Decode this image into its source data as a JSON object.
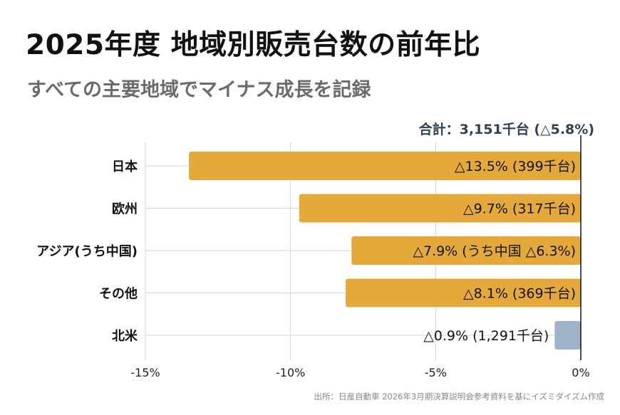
{
  "title": "2025年度 地域別販売台数の前年比",
  "subtitle": "すべての主要地域でマイナス成長を記録",
  "total_label": "合計：3,151千台 (△5.8%)",
  "source": "出所：日産自動車 2026年3月期決算説明会参考資料を基にイズミダイズム作成",
  "colors": {
    "bar": "#e4a93a",
    "bar_highlight": "#9eb3c8",
    "grid": "#d6d6d6",
    "zero_line": "#111111"
  },
  "chart_data": {
    "type": "bar",
    "orientation": "horizontal",
    "categories": [
      "日本",
      "欧州",
      "アジア(うち中国)",
      "その他",
      "北米"
    ],
    "values": [
      -13.5,
      -9.7,
      -7.9,
      -8.1,
      -0.9
    ],
    "data_labels": [
      "△13.5% (399千台)",
      "△9.7% (317千台)",
      "△7.9% (うち中国 △6.3%)",
      "△8.1% (369千台)",
      "△0.9% (1,291千台)"
    ],
    "highlight_index": 4,
    "xlim": [
      -15,
      0
    ],
    "xticks": [
      -15,
      -10,
      -5,
      0
    ],
    "xtick_labels": [
      "-15%",
      "-10%",
      "-5%",
      "0%"
    ],
    "xlabel": "",
    "ylabel": "",
    "grid": true
  }
}
